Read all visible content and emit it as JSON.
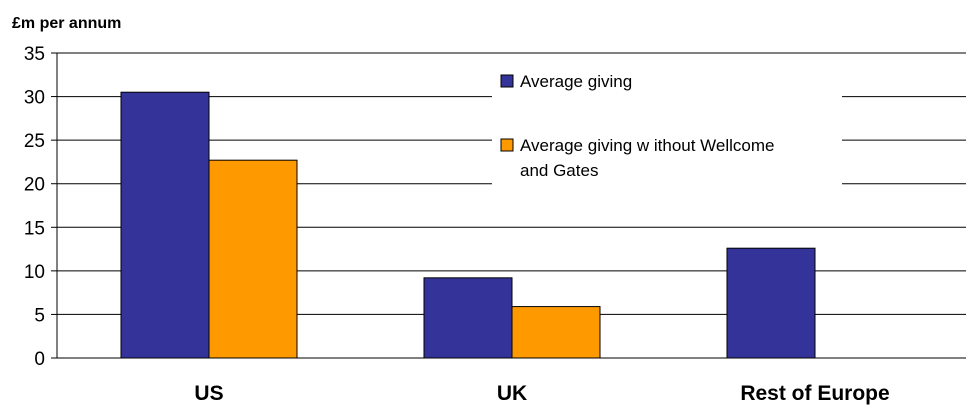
{
  "chart_data": {
    "type": "bar",
    "ylabel": "£m per annum",
    "categories": [
      "US",
      "UK",
      "Rest of Europe"
    ],
    "series": [
      {
        "name": "Average giving",
        "values": [
          30.5,
          9.2,
          12.6
        ],
        "color": "#333399"
      },
      {
        "name": "Average giving without Wellcome and Gates",
        "values": [
          22.7,
          5.9,
          null
        ],
        "color": "#FF9900"
      }
    ],
    "ylim": [
      0,
      35
    ],
    "yticks": [
      0,
      5,
      10,
      15,
      20,
      25,
      30,
      35
    ],
    "grid": true,
    "legend": {
      "placement": "top-right",
      "entries": [
        {
          "lines": [
            "Average giving"
          ]
        },
        {
          "lines": [
            "Average giving w ithout Wellcome",
            "and Gates"
          ]
        }
      ]
    }
  }
}
